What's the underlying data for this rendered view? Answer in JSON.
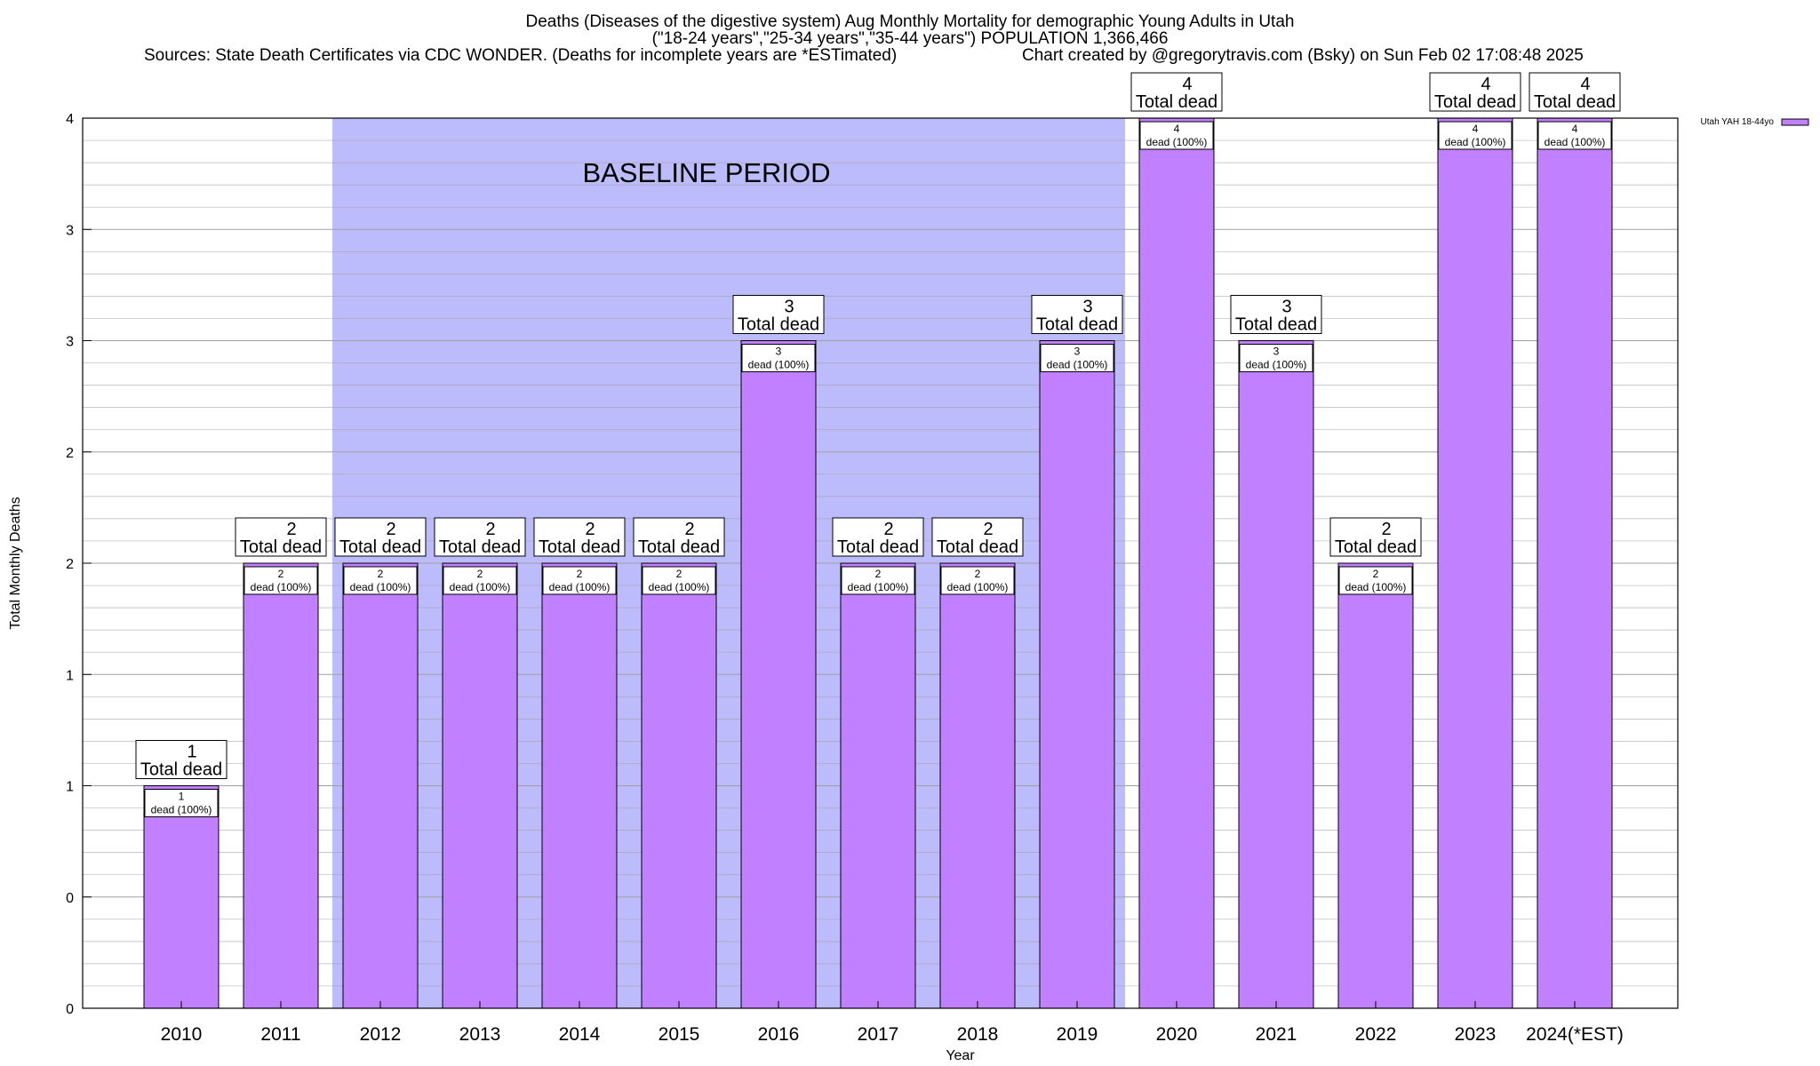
{
  "header": {
    "title_line1": "Deaths (Diseases of the digestive system) Aug Monthly Mortality for demographic Young Adults in Utah",
    "title_line2": "(\"18-24 years\",\"25-34 years\",\"35-44 years\") POPULATION 1,366,466",
    "sources": "Sources: State Death Certificates via CDC WONDER. (Deaths for incomplete years are *ESTimated)",
    "credit": "Chart created by @gregorytravis.com (Bsky) on Sun Feb 02 17:08:48 2025"
  },
  "colors": {
    "bar_fill": "#c080ff",
    "baseline_band": "#bcbcfc",
    "grid": "#a0a0a0",
    "axis": "#000000"
  },
  "chart_data": {
    "type": "bar",
    "title": "Deaths (Diseases of the digestive system) Aug Monthly Mortality for demographic Young Adults in Utah",
    "xlabel": "Year",
    "ylabel": "Total Monthly Deaths",
    "ylim": [
      0,
      4
    ],
    "y_tick_values": [
      0,
      0.5,
      1,
      1.5,
      2,
      2.5,
      3,
      3.5,
      4
    ],
    "y_tick_labels": [
      "0",
      "0",
      "1",
      "1",
      "2",
      "2",
      "3",
      "3",
      "4"
    ],
    "categories": [
      "2010",
      "2011",
      "2012",
      "2013",
      "2014",
      "2015",
      "2016",
      "2017",
      "2018",
      "2019",
      "2020",
      "2021",
      "2022",
      "2023",
      "2024(*EST)"
    ],
    "series": [
      {
        "name": "Utah YAH 18-44yo",
        "values": [
          1,
          2,
          2,
          2,
          2,
          2,
          3,
          2,
          2,
          3,
          4,
          3,
          2,
          4,
          4
        ]
      }
    ],
    "total_label_text": "Total dead",
    "bar_label_text": "dead (100%)",
    "shaded_region": {
      "label": "BASELINE PERIOD",
      "from_category": "2012",
      "to_category": "2019"
    },
    "legend_position": "top-right",
    "grid": true
  }
}
